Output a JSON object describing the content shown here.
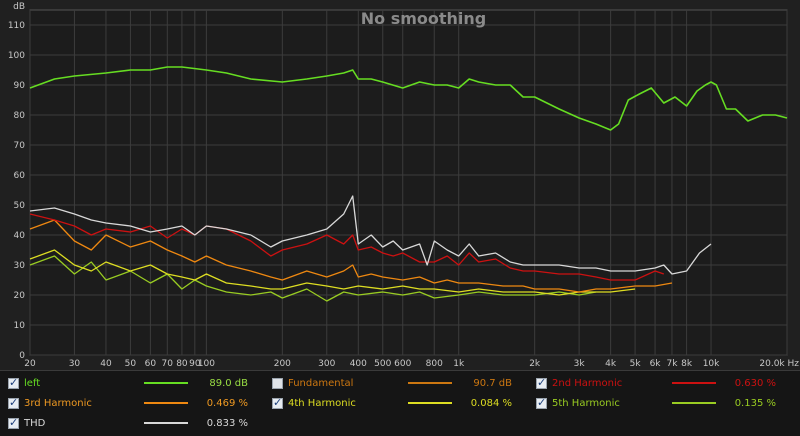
{
  "chart_data": {
    "type": "line",
    "title": "No smoothing",
    "ylabel": "dB",
    "xunit": "Hz",
    "xscale": "log",
    "xlim": [
      20,
      20000
    ],
    "ylim": [
      0,
      115
    ],
    "yticks": [
      0,
      10,
      20,
      30,
      40,
      50,
      60,
      70,
      80,
      90,
      100,
      110
    ],
    "xticks": [
      {
        "v": 20,
        "label": "20"
      },
      {
        "v": 30,
        "label": "30"
      },
      {
        "v": 40,
        "label": "40"
      },
      {
        "v": 50,
        "label": "50"
      },
      {
        "v": 60,
        "label": "60"
      },
      {
        "v": 70,
        "label": "70"
      },
      {
        "v": 80,
        "label": "80"
      },
      {
        "v": 90,
        "label": "90"
      },
      {
        "v": 100,
        "label": "100"
      },
      {
        "v": 200,
        "label": "200"
      },
      {
        "v": 300,
        "label": "300"
      },
      {
        "v": 400,
        "label": "400"
      },
      {
        "v": 500,
        "label": "500"
      },
      {
        "v": 600,
        "label": "600"
      },
      {
        "v": 800,
        "label": "800"
      },
      {
        "v": 1000,
        "label": "1k"
      },
      {
        "v": 2000,
        "label": "2k"
      },
      {
        "v": 3000,
        "label": "3k"
      },
      {
        "v": 4000,
        "label": "4k"
      },
      {
        "v": 5000,
        "label": "5k"
      },
      {
        "v": 6000,
        "label": "6k"
      },
      {
        "v": 7000,
        "label": "7k"
      },
      {
        "v": 8000,
        "label": "8k"
      },
      {
        "v": 10000,
        "label": "10k"
      },
      {
        "v": 20000,
        "label": "20.0k Hz"
      }
    ],
    "grid": true,
    "series": [
      {
        "name": "left",
        "color": "#66dd22",
        "x": [
          20,
          25,
          30,
          40,
          50,
          60,
          70,
          80,
          100,
          120,
          150,
          200,
          250,
          300,
          350,
          380,
          400,
          450,
          500,
          600,
          700,
          800,
          900,
          1000,
          1100,
          1200,
          1400,
          1600,
          1800,
          2000,
          2500,
          3000,
          3500,
          4000,
          4300,
          4700,
          5200,
          5800,
          6500,
          7200,
          8000,
          8800,
          9500,
          10000,
          10500,
          11500,
          12500,
          14000,
          16000,
          18000,
          20000
        ],
        "y": [
          89,
          92,
          93,
          94,
          95,
          95,
          96,
          96,
          95,
          94,
          92,
          91,
          92,
          93,
          94,
          95,
          92,
          92,
          91,
          89,
          91,
          90,
          90,
          89,
          92,
          91,
          90,
          90,
          86,
          86,
          82,
          79,
          77,
          75,
          77,
          85,
          87,
          89,
          84,
          86,
          83,
          88,
          90,
          91,
          90,
          82,
          82,
          78,
          80,
          80,
          79
        ]
      },
      {
        "name": "THD",
        "color": "#d8d8d8",
        "x": [
          20,
          25,
          30,
          35,
          40,
          50,
          60,
          70,
          80,
          90,
          100,
          120,
          150,
          180,
          200,
          250,
          300,
          350,
          380,
          400,
          450,
          500,
          550,
          600,
          700,
          750,
          800,
          900,
          1000,
          1100,
          1200,
          1400,
          1600,
          1800,
          2000,
          2500,
          3000,
          3500,
          4000,
          5000,
          6000,
          6500,
          7000,
          8000,
          9000,
          10000
        ],
        "y": [
          48,
          49,
          47,
          45,
          44,
          43,
          41,
          42,
          43,
          40,
          43,
          42,
          40,
          36,
          38,
          40,
          42,
          47,
          53,
          37,
          40,
          36,
          38,
          35,
          37,
          30,
          38,
          35,
          33,
          37,
          33,
          34,
          31,
          30,
          30,
          30,
          29,
          29,
          28,
          28,
          29,
          30,
          27,
          28,
          34,
          37
        ]
      },
      {
        "name": "2nd Harmonic",
        "color": "#cc1111",
        "x": [
          20,
          25,
          30,
          35,
          40,
          50,
          60,
          70,
          80,
          90,
          100,
          120,
          150,
          180,
          200,
          250,
          300,
          350,
          380,
          400,
          450,
          500,
          550,
          600,
          700,
          800,
          900,
          1000,
          1100,
          1200,
          1400,
          1600,
          1800,
          2000,
          2500,
          3000,
          3500,
          4000,
          5000,
          6000,
          6500
        ],
        "y": [
          47,
          45,
          43,
          40,
          42,
          41,
          43,
          39,
          42,
          40,
          43,
          42,
          38,
          33,
          35,
          37,
          40,
          37,
          40,
          35,
          36,
          34,
          33,
          34,
          31,
          31,
          33,
          30,
          34,
          31,
          32,
          29,
          28,
          28,
          27,
          27,
          26,
          25,
          25,
          28,
          27
        ]
      },
      {
        "name": "3rd Harmonic",
        "color": "#ee8811",
        "x": [
          20,
          25,
          30,
          35,
          40,
          50,
          60,
          70,
          80,
          90,
          100,
          120,
          150,
          180,
          200,
          250,
          300,
          350,
          380,
          400,
          450,
          500,
          600,
          700,
          800,
          900,
          1000,
          1200,
          1500,
          1800,
          2000,
          2500,
          3000,
          3500,
          4000,
          5000,
          6000,
          7000
        ],
        "y": [
          42,
          45,
          38,
          35,
          40,
          36,
          38,
          35,
          33,
          31,
          33,
          30,
          28,
          26,
          25,
          28,
          26,
          28,
          30,
          26,
          27,
          26,
          25,
          26,
          24,
          25,
          24,
          24,
          23,
          23,
          22,
          22,
          21,
          22,
          22,
          23,
          23,
          24
        ]
      },
      {
        "name": "4th Harmonic",
        "color": "#dddd22",
        "x": [
          20,
          25,
          30,
          35,
          40,
          50,
          60,
          70,
          80,
          90,
          100,
          120,
          150,
          180,
          200,
          250,
          300,
          350,
          400,
          500,
          600,
          700,
          800,
          1000,
          1200,
          1500,
          1800,
          2000,
          2500,
          3000,
          3500,
          4000,
          5000
        ],
        "y": [
          32,
          35,
          30,
          28,
          31,
          28,
          30,
          27,
          26,
          25,
          27,
          24,
          23,
          22,
          22,
          24,
          23,
          22,
          23,
          22,
          23,
          22,
          22,
          21,
          22,
          21,
          21,
          21,
          20,
          21,
          21,
          21,
          22
        ]
      },
      {
        "name": "5th Harmonic",
        "color": "#99cc22",
        "x": [
          20,
          25,
          30,
          35,
          40,
          50,
          60,
          70,
          80,
          90,
          100,
          120,
          150,
          180,
          200,
          250,
          300,
          350,
          400,
          500,
          600,
          700,
          800,
          1000,
          1200,
          1500,
          1800,
          2000,
          2500,
          3000,
          3500
        ],
        "y": [
          30,
          33,
          27,
          31,
          25,
          28,
          24,
          27,
          22,
          25,
          23,
          21,
          20,
          21,
          19,
          22,
          18,
          21,
          20,
          21,
          20,
          21,
          19,
          20,
          21,
          20,
          20,
          20,
          21,
          20,
          21
        ]
      }
    ]
  },
  "legend": [
    {
      "label": "left",
      "value": "89.0 dB",
      "color": "#66dd22",
      "checked": true
    },
    {
      "label": "Fundamental",
      "value": "90.7 dB",
      "color": "#cc7711",
      "checked": false
    },
    {
      "label": "2nd Harmonic",
      "value": "0.630 %",
      "color": "#cc1111",
      "checked": true
    },
    {
      "label": "3rd Harmonic",
      "value": "0.469 %",
      "color": "#ee8811",
      "checked": true
    },
    {
      "label": "4th Harmonic",
      "value": "0.084 %",
      "color": "#dddd22",
      "checked": true
    },
    {
      "label": "5th Harmonic",
      "value": "0.135 %",
      "color": "#99cc22",
      "checked": true
    },
    {
      "label": "THD",
      "value": "0.833 %",
      "color": "#d8d8d8",
      "checked": true
    }
  ]
}
